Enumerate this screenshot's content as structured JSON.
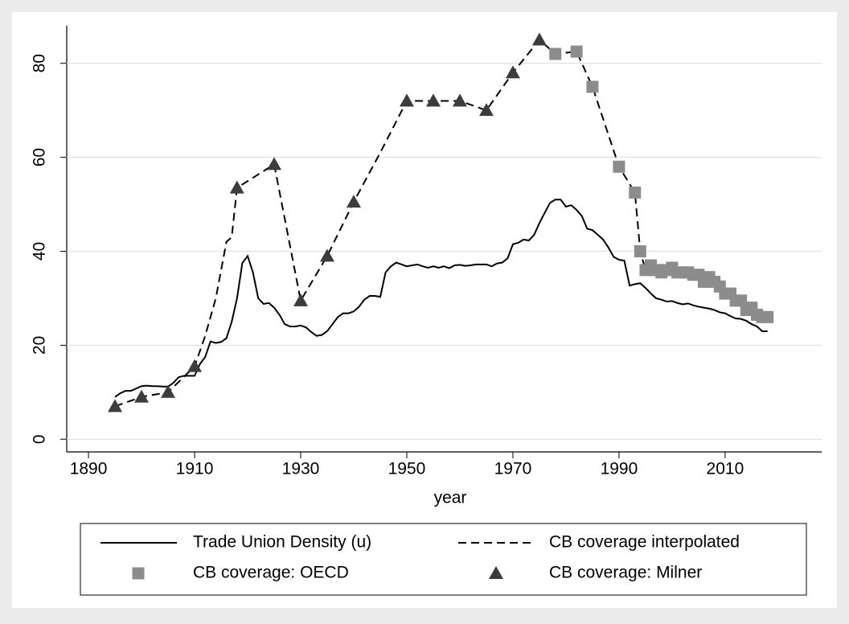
{
  "chart_data": {
    "type": "line",
    "x_label": "year",
    "xlim": [
      1885.9,
      2028.2
    ],
    "xticks": [
      1890,
      1910,
      1930,
      1950,
      1970,
      1990,
      2010
    ],
    "ylim": [
      -2.7,
      88
    ],
    "yticks": [
      0,
      20,
      40,
      60,
      80
    ],
    "grid": true,
    "legend": "bottom",
    "series": [
      {
        "name": "Trade Union Density (u)",
        "type": "line",
        "line_style": "solid",
        "color": "#000000",
        "x": [
          1895,
          1896,
          1897,
          1898,
          1899,
          1900,
          1901,
          1902,
          1903,
          1904,
          1905,
          1906,
          1907,
          1908,
          1909,
          1910,
          1911,
          1912,
          1913,
          1914,
          1915,
          1916,
          1917,
          1918,
          1919,
          1920,
          1921,
          1922,
          1923,
          1924,
          1925,
          1926,
          1927,
          1928,
          1929,
          1930,
          1931,
          1932,
          1933,
          1934,
          1935,
          1936,
          1937,
          1938,
          1939,
          1940,
          1941,
          1942,
          1943,
          1944,
          1945,
          1946,
          1947,
          1948,
          1949,
          1950,
          1951,
          1952,
          1953,
          1954,
          1955,
          1956,
          1957,
          1958,
          1959,
          1960,
          1961,
          1962,
          1963,
          1964,
          1965,
          1966,
          1967,
          1968,
          1969,
          1970,
          1971,
          1972,
          1973,
          1974,
          1975,
          1976,
          1977,
          1978,
          1979,
          1980,
          1981,
          1982,
          1983,
          1984,
          1985,
          1986,
          1987,
          1988,
          1989,
          1990,
          1991,
          1992,
          1993,
          1994,
          1995,
          1996,
          1997,
          1998,
          1999,
          2000,
          2001,
          2002,
          2003,
          2004,
          2005,
          2006,
          2007,
          2008,
          2009,
          2010,
          2011,
          2012,
          2013,
          2014,
          2015,
          2016,
          2017,
          2018
        ],
        "values": [
          9,
          9.8,
          10.3,
          10.3,
          10.8,
          11.3,
          11.4,
          11.3,
          11.3,
          11.2,
          11.2,
          12,
          13.2,
          13.5,
          13.5,
          13.5,
          16,
          17.5,
          20.8,
          20.5,
          20.7,
          21.5,
          25,
          30,
          37.5,
          39,
          35.5,
          30,
          28.8,
          29,
          28,
          26.5,
          24.5,
          24,
          24,
          24.2,
          23.8,
          22.8,
          22,
          22.2,
          23,
          24.5,
          26,
          26.8,
          26.8,
          27.2,
          28.2,
          29.7,
          30.5,
          30.5,
          30.3,
          35.5,
          36.8,
          37.6,
          37.2,
          36.8,
          37,
          37.2,
          36.8,
          36.5,
          36.8,
          36.5,
          36.8,
          36.4,
          37,
          37.1,
          36.9,
          37,
          37.2,
          37.2,
          37.2,
          36.8,
          37.4,
          37.6,
          38.5,
          41.5,
          41.8,
          42.5,
          42.3,
          43.5,
          46,
          48.2,
          50.3,
          51,
          51,
          49.5,
          49.8,
          48.8,
          47.5,
          44.8,
          44.5,
          43.5,
          42.5,
          40.8,
          38.8,
          38.2,
          38,
          32.7,
          33,
          33.2,
          32.2,
          31,
          30,
          29.7,
          29.3,
          29.4,
          29,
          28.7,
          28.9,
          28.5,
          28.2,
          28,
          27.8,
          27.5,
          27,
          26.8,
          26.2,
          25.7,
          25.6,
          25.2,
          24.5,
          24,
          23,
          23
        ]
      },
      {
        "name": "CB coverage interpolated",
        "type": "line",
        "line_style": "dashed",
        "color": "#000000",
        "x": [
          1895,
          1900,
          1905,
          1910,
          1912,
          1914,
          1916,
          1917,
          1918,
          1925,
          1930,
          1935,
          1940,
          1945,
          1950,
          1955,
          1960,
          1965,
          1970,
          1975,
          1978,
          1982,
          1985,
          1990,
          1993,
          1994,
          1995,
          1996,
          1997,
          1998,
          1999,
          2000,
          2001,
          2002,
          2003,
          2004,
          2005,
          2006,
          2007,
          2008,
          2009,
          2010,
          2011,
          2012,
          2013,
          2014,
          2015,
          2016,
          2017,
          2018
        ],
        "values": [
          7,
          9,
          10,
          15.5,
          22,
          30,
          42,
          43,
          53.5,
          58.5,
          29.5,
          39,
          50.5,
          61,
          72,
          72,
          72,
          70,
          78,
          85,
          82,
          82.5,
          75,
          58,
          52.5,
          40,
          36,
          37,
          36,
          35.5,
          36,
          36.5,
          35.5,
          35.5,
          35.5,
          35,
          35,
          33.5,
          34.5,
          33.5,
          32.5,
          31,
          31,
          29.5,
          29.5,
          27.5,
          28,
          26.5,
          26,
          26
        ]
      },
      {
        "name": "CB coverage: OECD",
        "type": "scatter",
        "marker": "square",
        "color": "#8c8c8c",
        "x": [
          1978,
          1982,
          1985,
          1990,
          1993,
          1994,
          1995,
          1996,
          1997,
          1998,
          1999,
          2000,
          2001,
          2002,
          2003,
          2004,
          2005,
          2006,
          2007,
          2008,
          2009,
          2010,
          2011,
          2012,
          2013,
          2014,
          2015,
          2016,
          2017,
          2018
        ],
        "values": [
          82,
          82.5,
          75,
          58,
          52.5,
          40,
          36,
          37,
          36,
          35.5,
          36,
          36.5,
          35.5,
          35.5,
          35.5,
          35,
          35,
          33.5,
          34.5,
          33.5,
          32.5,
          31,
          31,
          29.5,
          29.5,
          27.5,
          28,
          26.5,
          26,
          26
        ]
      },
      {
        "name": "CB coverage: Milner",
        "type": "scatter",
        "marker": "triangle",
        "color": "#3c3c3c",
        "x": [
          1895,
          1900,
          1905,
          1910,
          1918,
          1925,
          1930,
          1935,
          1940,
          1950,
          1955,
          1960,
          1965,
          1970,
          1975
        ],
        "values": [
          7,
          9,
          10,
          15.5,
          53.5,
          58.5,
          29.5,
          39,
          50.5,
          72,
          72,
          72,
          70,
          78,
          85
        ]
      }
    ]
  }
}
